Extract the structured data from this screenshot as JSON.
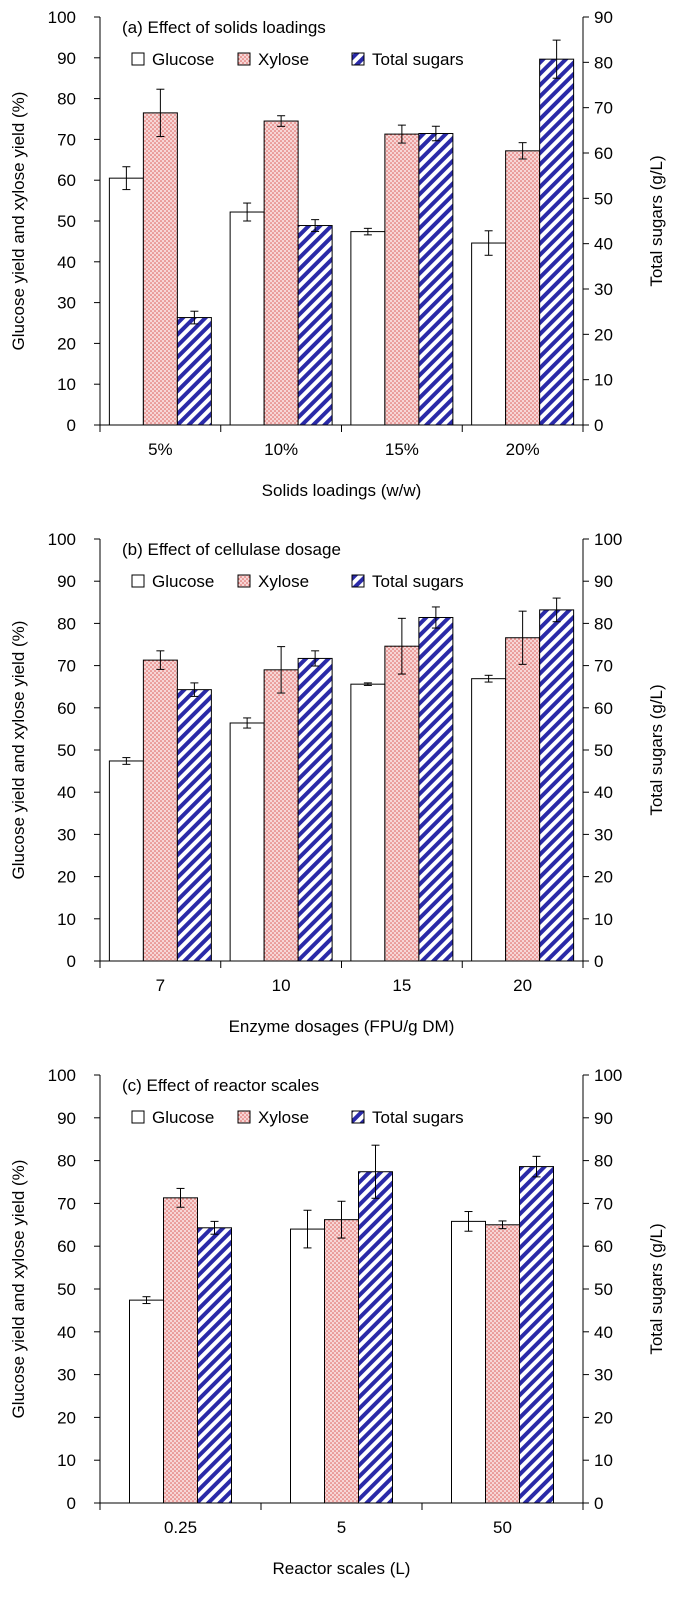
{
  "colors": {
    "glucose_fill": "#ffffff",
    "xylose_fill": "#f7d6d6",
    "xylose_dot": "#d9534f",
    "total_stripe": "#2a2aa8",
    "total_bg": "#ffffff",
    "axis": "#000000"
  },
  "chart_data": [
    {
      "type": "bar",
      "title": "(a) Effect of solids loadings",
      "xlabel": "Solids loadings (w/w)",
      "ylabel": "Glucose yield and xylose yield (%)",
      "y2label": "Total sugars (g/L)",
      "categories": [
        "5%",
        "10%",
        "15%",
        "20%"
      ],
      "ylim": [
        0,
        100
      ],
      "y2lim": [
        0,
        90
      ],
      "yticks": [
        "0",
        "10",
        "20",
        "30",
        "40",
        "50",
        "60",
        "70",
        "80",
        "90",
        "100"
      ],
      "y2ticks": [
        "0",
        "10",
        "20",
        "30",
        "40",
        "50",
        "60",
        "70",
        "80",
        "90"
      ],
      "legend_position": "top",
      "grid": false,
      "series": [
        {
          "name": "Glucose",
          "axis": "left",
          "values": [
            60.5,
            52.2,
            47.4,
            44.6
          ],
          "errors": [
            2.8,
            2.2,
            0.8,
            3.0
          ]
        },
        {
          "name": "Xylose",
          "axis": "left",
          "values": [
            76.5,
            74.5,
            71.3,
            67.2
          ],
          "errors": [
            5.8,
            1.3,
            2.2,
            2.0
          ]
        },
        {
          "name": "Total sugars",
          "axis": "right",
          "values": [
            23.7,
            44.0,
            64.3,
            80.7
          ],
          "errors": [
            1.4,
            1.3,
            1.6,
            4.2
          ]
        }
      ]
    },
    {
      "type": "bar",
      "title": "(b) Effect of cellulase dosage",
      "xlabel": "Enzyme dosages (FPU/g DM)",
      "ylabel": "Glucose yield and xylose yield (%)",
      "y2label": "Total sugars (g/L)",
      "categories": [
        "7",
        "10",
        "15",
        "20"
      ],
      "ylim": [
        0,
        100
      ],
      "y2lim": [
        0,
        100
      ],
      "yticks": [
        "0",
        "10",
        "20",
        "30",
        "40",
        "50",
        "60",
        "70",
        "80",
        "90",
        "100"
      ],
      "y2ticks": [
        "0",
        "10",
        "20",
        "30",
        "40",
        "50",
        "60",
        "70",
        "80",
        "90",
        "100"
      ],
      "legend_position": "top",
      "grid": false,
      "series": [
        {
          "name": "Glucose",
          "axis": "left",
          "values": [
            47.4,
            56.4,
            65.6,
            66.9
          ],
          "errors": [
            0.8,
            1.2,
            0.3,
            0.8
          ]
        },
        {
          "name": "Xylose",
          "axis": "left",
          "values": [
            71.3,
            69.0,
            74.6,
            76.6
          ],
          "errors": [
            2.2,
            5.5,
            6.6,
            6.3
          ]
        },
        {
          "name": "Total sugars",
          "axis": "right",
          "values": [
            64.3,
            71.7,
            81.4,
            83.2
          ],
          "errors": [
            1.6,
            1.8,
            2.5,
            2.8
          ]
        }
      ]
    },
    {
      "type": "bar",
      "title": "(c) Effect of reactor scales",
      "xlabel": "Reactor scales (L)",
      "ylabel": "Glucose yield and xylose yield (%)",
      "y2label": "Total sugars (g/L)",
      "categories": [
        "0.25",
        "5",
        "50"
      ],
      "ylim": [
        0,
        100
      ],
      "y2lim": [
        0,
        100
      ],
      "yticks": [
        "0",
        "10",
        "20",
        "30",
        "40",
        "50",
        "60",
        "70",
        "80",
        "90",
        "100"
      ],
      "y2ticks": [
        "0",
        "10",
        "20",
        "30",
        "40",
        "50",
        "60",
        "70",
        "80",
        "90",
        "100"
      ],
      "legend_position": "top",
      "grid": false,
      "series": [
        {
          "name": "Glucose",
          "axis": "left",
          "values": [
            47.4,
            64.0,
            65.8
          ],
          "errors": [
            0.8,
            4.4,
            2.3
          ]
        },
        {
          "name": "Xylose",
          "axis": "left",
          "values": [
            71.3,
            66.2,
            65.0
          ],
          "errors": [
            2.2,
            4.3,
            0.9
          ]
        },
        {
          "name": "Total sugars",
          "axis": "right",
          "values": [
            64.3,
            77.4,
            78.6
          ],
          "errors": [
            1.5,
            6.2,
            2.4
          ]
        }
      ]
    }
  ]
}
